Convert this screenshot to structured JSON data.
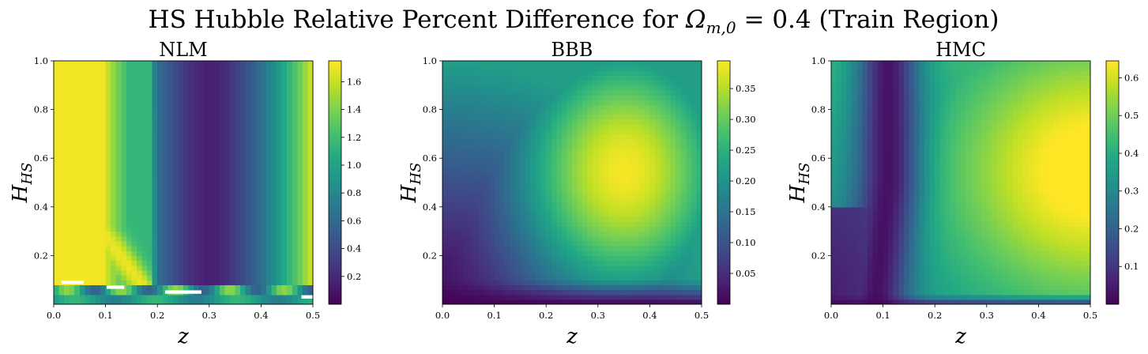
{
  "figure": {
    "suptitle_prefix": "HS Hubble Relative Percent Difference for ",
    "suptitle_omega": "Ω",
    "suptitle_sub": "m,0",
    "suptitle_suffix": " = 0.4 (Train Region)"
  },
  "chart_data": [
    {
      "type": "heatmap",
      "title": "NLM",
      "xlabel": "z",
      "ylabel": "H",
      "ylabel_sub": "HS",
      "xlim": [
        0.0,
        0.5
      ],
      "ylim": [
        0.0,
        1.0
      ],
      "xticks": [
        "0.0",
        "0.1",
        "0.2",
        "0.3",
        "0.4",
        "0.5"
      ],
      "yticks": [
        "0.2",
        "0.4",
        "0.6",
        "0.8",
        "1.0"
      ],
      "colormap": "viridis",
      "colorbar_range": [
        0.0,
        1.75
      ],
      "colorbar_ticks": [
        "0.2",
        "0.4",
        "0.6",
        "0.8",
        "1.0",
        "1.2",
        "1.4",
        "1.6"
      ],
      "pattern": "minimum near z=0.30; diagonal high band from (z=0, H=0.55) to (z=0.16, H=0.12); maximum near z=0.5; missing (white) cells near H=0.04-0.09"
    },
    {
      "type": "heatmap",
      "title": "BBB",
      "xlabel": "z",
      "ylabel": "H",
      "ylabel_sub": "HS",
      "xlim": [
        0.0,
        0.5
      ],
      "ylim": [
        0.0,
        1.0
      ],
      "xticks": [
        "0.0",
        "0.1",
        "0.2",
        "0.3",
        "0.4",
        "0.5"
      ],
      "yticks": [
        "0.2",
        "0.4",
        "0.6",
        "0.8",
        "1.0"
      ],
      "colormap": "viridis",
      "colorbar_range": [
        0.0,
        0.395
      ],
      "colorbar_ticks": [
        "0.05",
        "0.10",
        "0.15",
        "0.20",
        "0.25",
        "0.30",
        "0.35"
      ],
      "pattern": "peak about 0.39 near z=0.35, H=0.55; minimum near z=0, H=0"
    },
    {
      "type": "heatmap",
      "title": "HMC",
      "xlabel": "z",
      "ylabel": "H",
      "ylabel_sub": "HS",
      "xlim": [
        0.0,
        0.5
      ],
      "ylim": [
        0.0,
        1.0
      ],
      "xticks": [
        "0.0",
        "0.1",
        "0.2",
        "0.3",
        "0.4",
        "0.5"
      ],
      "yticks": [
        "0.2",
        "0.4",
        "0.6",
        "0.8",
        "1.0"
      ],
      "colormap": "viridis",
      "colorbar_range": [
        0.0,
        0.645
      ],
      "colorbar_ticks": [
        "0.1",
        "0.2",
        "0.3",
        "0.4",
        "0.5",
        "0.6"
      ],
      "pattern": "low valley near z=0.10-0.12; peak about 0.64 near z=0.5, H=0.55; low strip along H near 0"
    }
  ]
}
